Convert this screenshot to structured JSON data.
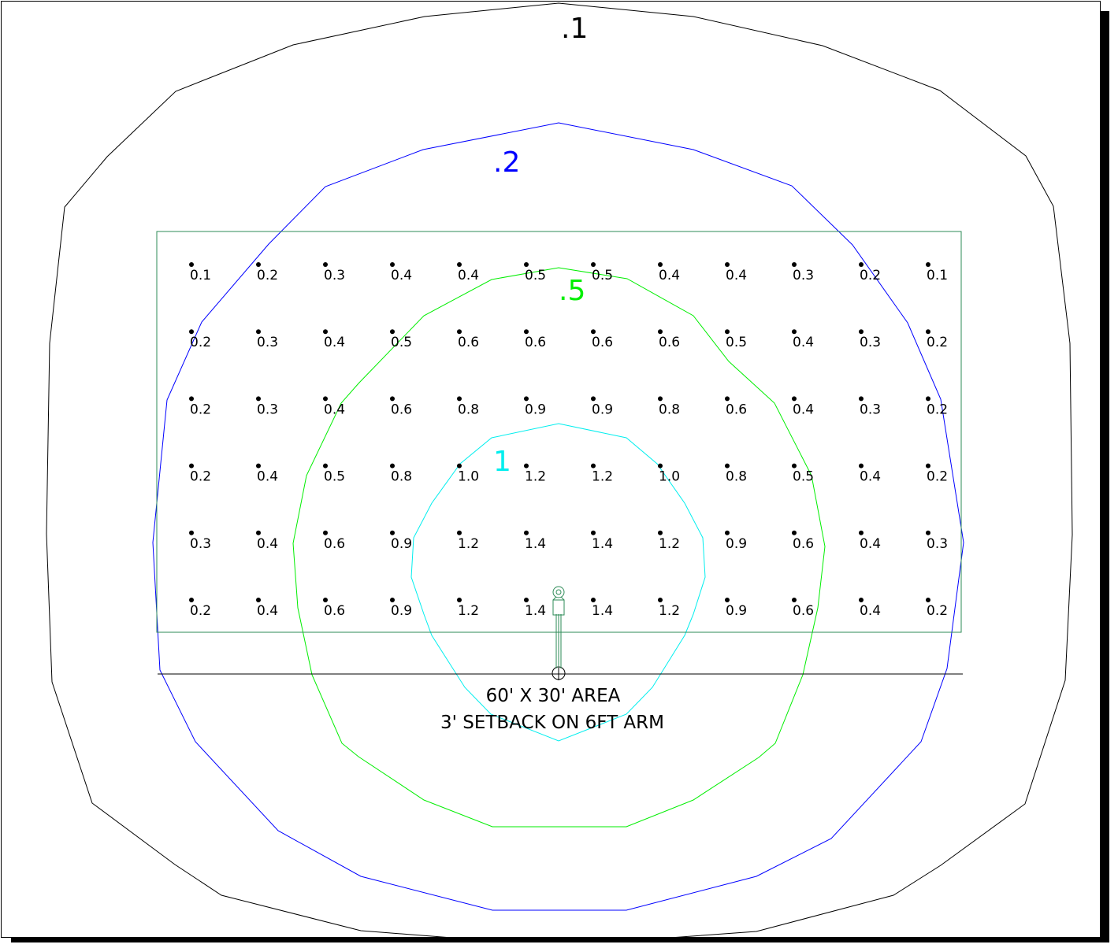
{
  "diagram": {
    "contours": [
      {
        "label": ".1",
        "color": "#000000"
      },
      {
        "label": ".2",
        "color": "#0000ff"
      },
      {
        "label": ".5",
        "color": "#00ee00"
      },
      {
        "label": "1",
        "color": "#00eeee"
      }
    ],
    "area_outline_color": "#2e8b57",
    "grid_values": [
      [
        "0.1",
        "0.2",
        "0.3",
        "0.4",
        "0.4",
        "0.5",
        "0.5",
        "0.4",
        "0.4",
        "0.3",
        "0.2",
        "0.1"
      ],
      [
        "0.2",
        "0.3",
        "0.4",
        "0.5",
        "0.6",
        "0.6",
        "0.6",
        "0.6",
        "0.5",
        "0.4",
        "0.3",
        "0.2"
      ],
      [
        "0.2",
        "0.3",
        "0.4",
        "0.6",
        "0.8",
        "0.9",
        "0.9",
        "0.8",
        "0.6",
        "0.4",
        "0.3",
        "0.2"
      ],
      [
        "0.2",
        "0.4",
        "0.5",
        "0.8",
        "1.0",
        "1.2",
        "1.2",
        "1.0",
        "0.8",
        "0.5",
        "0.4",
        "0.2"
      ],
      [
        "0.3",
        "0.4",
        "0.6",
        "0.9",
        "1.2",
        "1.4",
        "1.4",
        "1.2",
        "0.9",
        "0.6",
        "0.4",
        "0.3"
      ],
      [
        "0.2",
        "0.4",
        "0.6",
        "0.9",
        "1.2",
        "1.4",
        "1.4",
        "1.2",
        "0.9",
        "0.6",
        "0.4",
        "0.2"
      ]
    ],
    "caption_line1": "60' X 30' AREA",
    "caption_line2": "3' SETBACK ON 6FT ARM"
  }
}
